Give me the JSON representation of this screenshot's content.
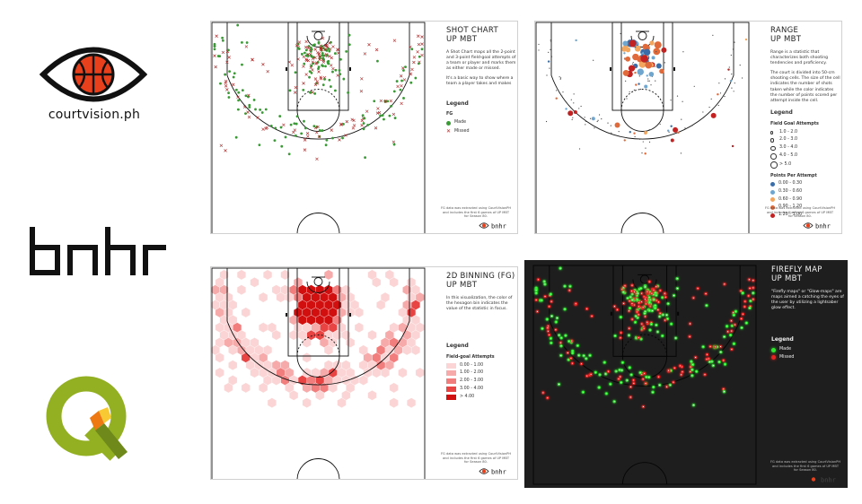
{
  "brand": {
    "name": "courtvision.ph",
    "wordmark": "bnhr"
  },
  "panels": [
    {
      "id": "shot-chart",
      "title_line1": "SHOT CHART",
      "title_line2": "UP MBT",
      "desc": [
        "A Shot Chart maps all the 2-point and 3-point field-goal attempts of a team or player and marks them as either made or missed.",
        "It's a basic way to show where a team a player takes and makes"
      ],
      "legend_title": "Legend",
      "legend_sub": "FG",
      "legend_items": [
        {
          "label": "Made",
          "color": "#3a9a35"
        },
        {
          "label": "Missed",
          "color": "#b02828"
        }
      ],
      "credit": "FG data was extracted using CourtVisionPH and includes the first 6 games of UP MBT for Season 80.",
      "logo_text": "bnhr"
    },
    {
      "id": "range",
      "title_line1": "RANGE",
      "title_line2": "UP MBT",
      "desc": [
        "Range is a statistic that characterizes both shooting tendencies and proficiency.",
        "The court is divided into 50-cm shooting cells. The size of the cell indicates the number of shots taken while the color indicates the number of points scored per attempt inside the cell."
      ],
      "legend_title": "Legend",
      "legend_sub": "Field Goal Attempts",
      "legend_items": [
        {
          "label": "1.0 - 2.0",
          "size": 1.2
        },
        {
          "label": "2.0 - 3.0",
          "size": 2
        },
        {
          "label": "3.0 - 4.0",
          "size": 3
        },
        {
          "label": "4.0 - 5.0",
          "size": 3.8
        },
        {
          "label": "> 5.0",
          "size": 4.6
        }
      ],
      "legend_sub2": "Points Per Attempt",
      "legend_items2": [
        {
          "label": "0.00 - 0.30",
          "color": "#3b6ea8"
        },
        {
          "label": "0.30 - 0.60",
          "color": "#6fa6cf"
        },
        {
          "label": "0.60 - 0.90",
          "color": "#f2a65e"
        },
        {
          "label": "0.90 - 1.20",
          "color": "#e06a3a"
        },
        {
          "label": "1.20 - 3.00",
          "color": "#c22222"
        }
      ],
      "credit": "FG data was extracted using CourtVisionPH and includes the first 6 games of UP MBT for Season 80.",
      "logo_text": "bnhr"
    },
    {
      "id": "binning",
      "title_line1": "2D BINNING (FG)",
      "title_line2": "UP MBT",
      "desc": [
        "In this visualization, the color of the hexagon bin indicates the value of the statistic in focus."
      ],
      "legend_title": "Legend",
      "legend_sub": "Field-goal Attempts",
      "legend_items": [
        {
          "label": "0.00 - 1.00",
          "color": "#fbd5d5"
        },
        {
          "label": "1.00 - 2.00",
          "color": "#f7aaaa"
        },
        {
          "label": "2.00 - 3.00",
          "color": "#f27d7d"
        },
        {
          "label": "3.00 - 4.00",
          "color": "#e84444"
        },
        {
          "label": "> 4.00",
          "color": "#d10f0f"
        }
      ],
      "credit": "FG data was extracted using CourtVisionPH and includes the first 6 games of UP MBT for Season 80.",
      "logo_text": "bnhr"
    },
    {
      "id": "firefly",
      "title_line1": "FIREFLY MAP",
      "title_line2": "UP MBT",
      "desc": [
        "\"Firefly maps\" or \"Glow-maps\" are maps aimed a catching the eyes of the user by utilizing a lightsaber glow effect."
      ],
      "legend_title": "Legend",
      "legend_items": [
        {
          "label": "Made",
          "color": "#2ee82e"
        },
        {
          "label": "Missed",
          "color": "#e82222"
        }
      ],
      "credit": "FG data was extracted using CourtVisionPH and includes the first 6 games of UP MBT for Season 80.",
      "logo_text": "bnhr"
    }
  ],
  "colors": {
    "made": "#3a9a35",
    "missed": "#b02828",
    "glow_made": "#2ee82e",
    "glow_missed": "#e82222",
    "brand_red": "#e8401c",
    "qgis_green": "#93b023",
    "qgis_orange": "#ee7913"
  }
}
